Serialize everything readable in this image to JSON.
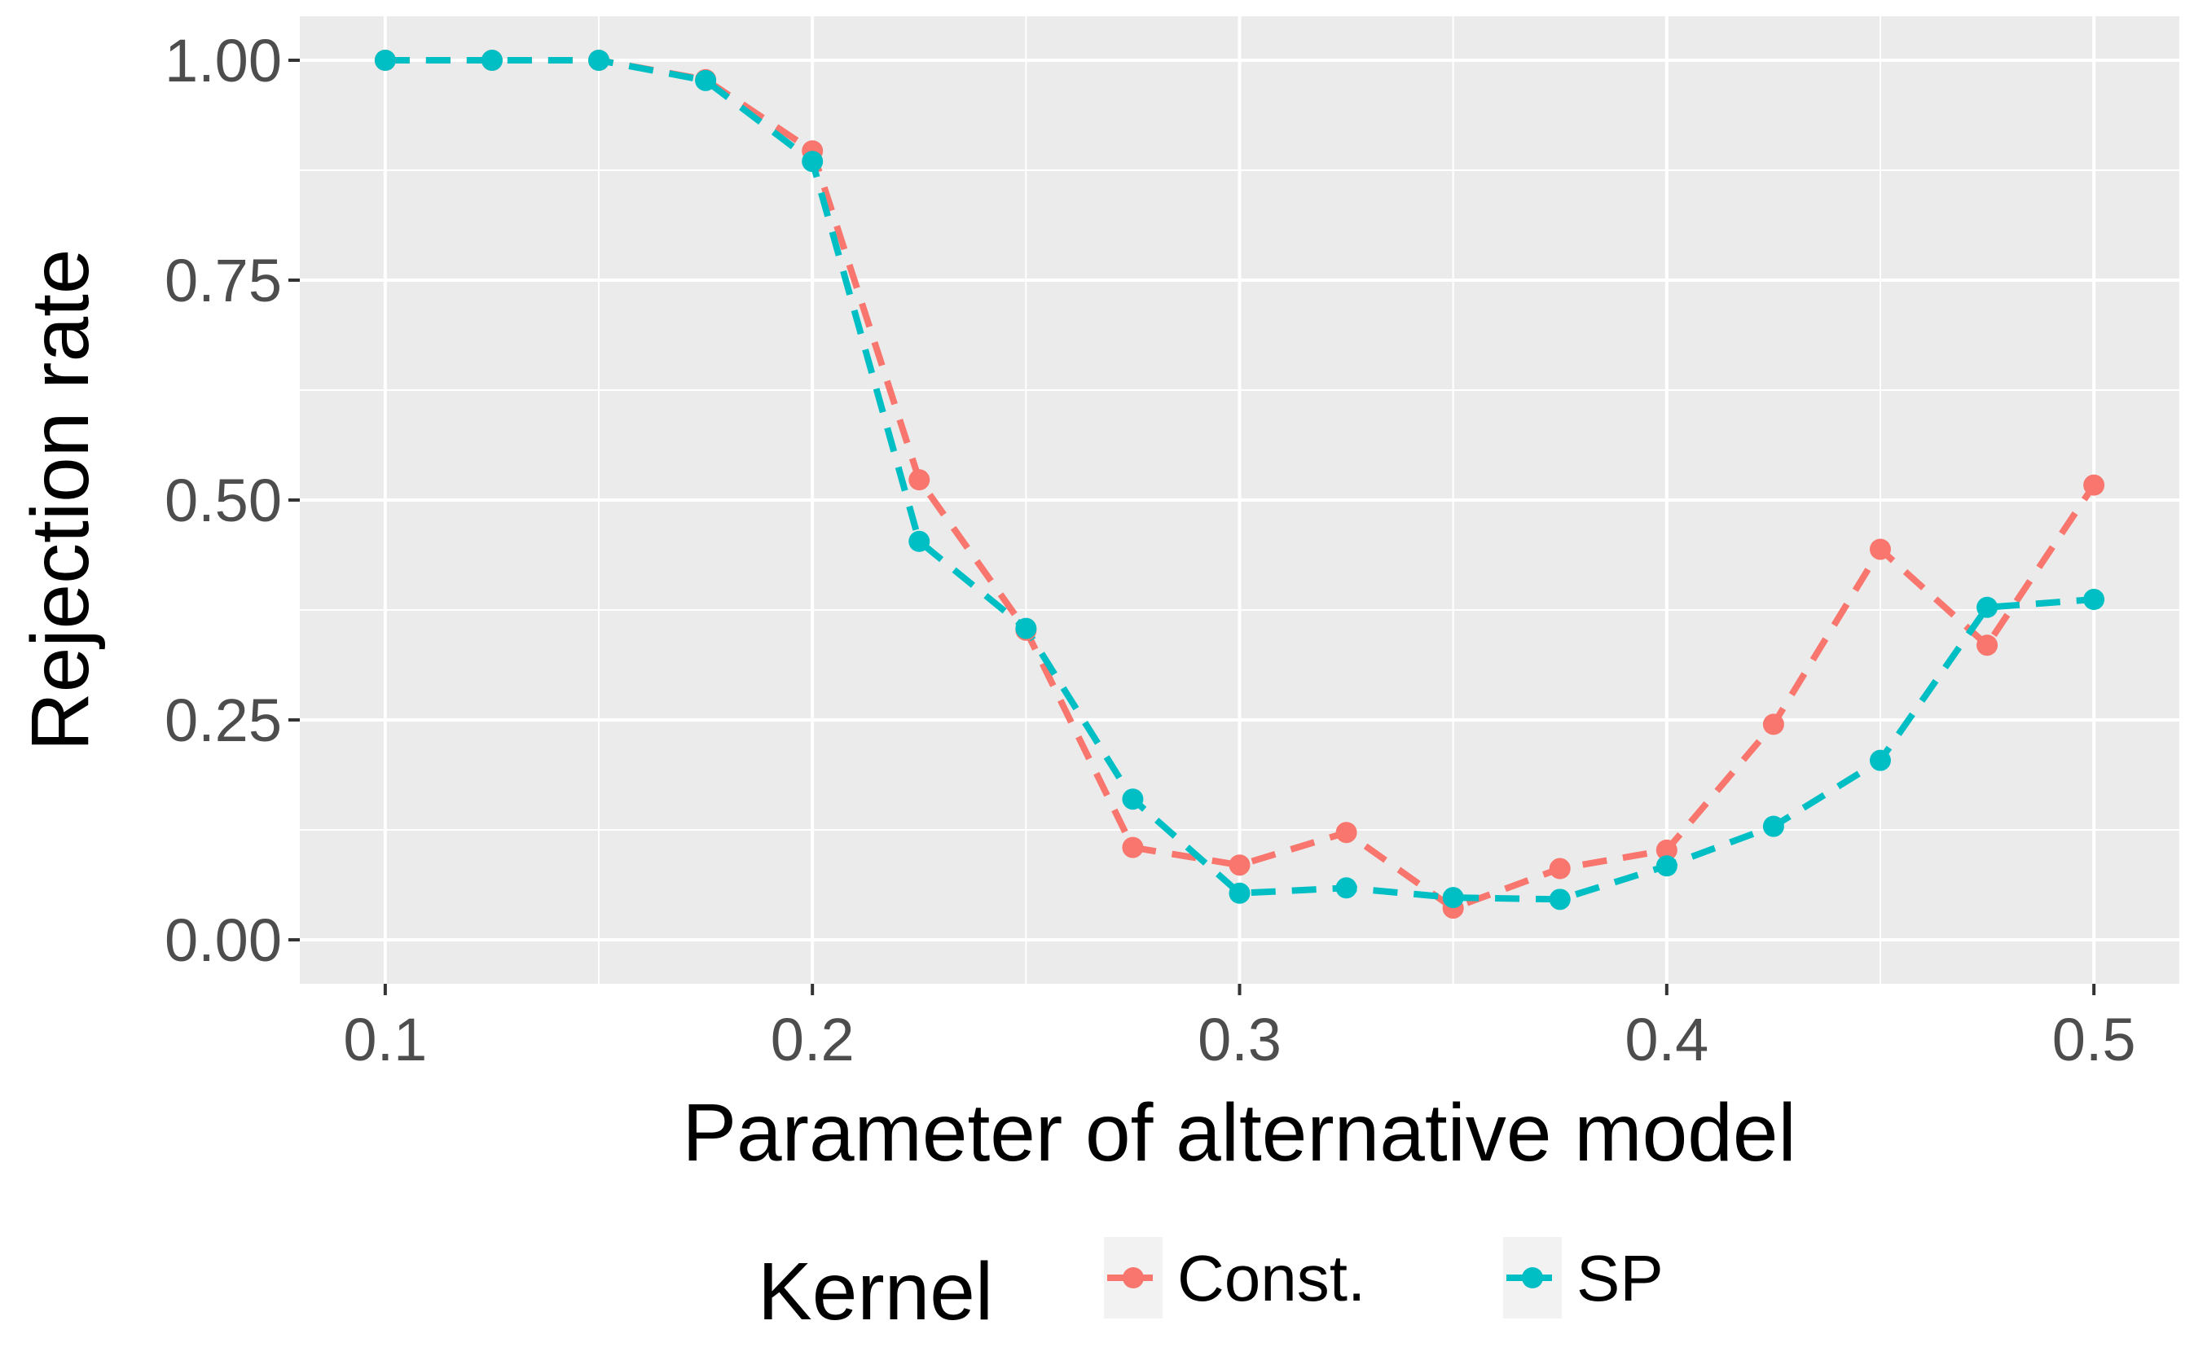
{
  "chart_data": {
    "type": "line",
    "xlabel": "Parameter of alternative model",
    "ylabel": "Rejection rate",
    "xlim": [
      0.08,
      0.52
    ],
    "ylim": [
      -0.05,
      1.05
    ],
    "x_ticks": [
      0.1,
      0.2,
      0.3,
      0.4,
      0.5
    ],
    "x_tick_labels": [
      "0.1",
      "0.2",
      "0.3",
      "0.4",
      "0.5"
    ],
    "y_ticks": [
      0.0,
      0.25,
      0.5,
      0.75,
      1.0
    ],
    "y_tick_labels": [
      "0.00",
      "0.25",
      "0.50",
      "0.75",
      "1.00"
    ],
    "grid": true,
    "line_style": "dashed",
    "legend": {
      "title": "Kernel",
      "position": "bottom",
      "entries": [
        "Const.",
        "SP"
      ]
    },
    "x": [
      0.1,
      0.125,
      0.15,
      0.175,
      0.2,
      0.225,
      0.25,
      0.275,
      0.3,
      0.325,
      0.35,
      0.375,
      0.4,
      0.425,
      0.45,
      0.475,
      0.5
    ],
    "series": [
      {
        "name": "Const.",
        "color": "#f8766d",
        "values": [
          1.0,
          1.0,
          1.0,
          0.978,
          0.897,
          0.523,
          0.352,
          0.105,
          0.085,
          0.122,
          0.036,
          0.081,
          0.102,
          0.245,
          0.444,
          0.335,
          0.517
        ]
      },
      {
        "name": "SP",
        "color": "#00bfc4",
        "values": [
          1.0,
          1.0,
          1.0,
          0.977,
          0.885,
          0.453,
          0.354,
          0.16,
          0.053,
          0.059,
          0.048,
          0.046,
          0.084,
          0.129,
          0.204,
          0.378,
          0.387
        ]
      }
    ]
  }
}
